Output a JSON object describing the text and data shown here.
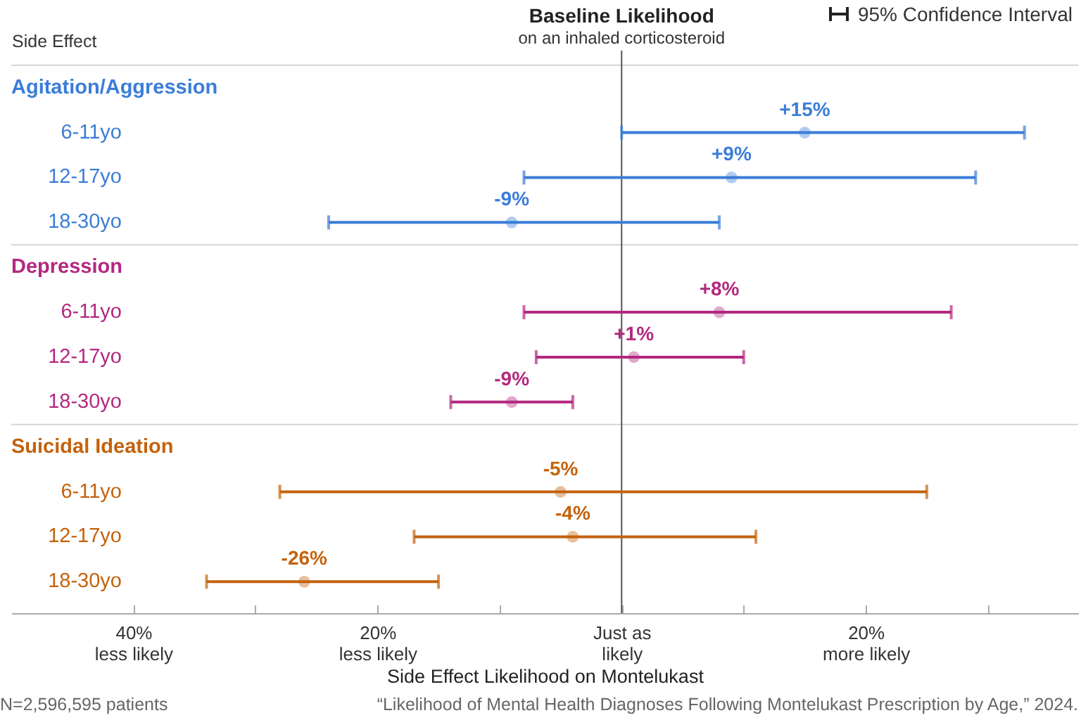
{
  "chart_data": {
    "type": "scatter",
    "orientation": "horizontal",
    "marker": "circle",
    "ylabel": "Side Effect",
    "xlabel": "Side Effect Likelihood on Montelukast",
    "categories": [
      null,
      "6-11yo",
      "12-17yo",
      "18-30yo",
      null,
      "6-11yo",
      "12-17yo",
      "18-30yo",
      null,
      "6-11yo",
      "12-17yo",
      "18-30yo"
    ],
    "xlim": [
      -50,
      37.4
    ],
    "xticks": [
      {
        "value": -40,
        "label": "40%\nless likely"
      },
      {
        "value": -30,
        "label": null
      },
      {
        "value": -20,
        "label": "20%\nless likely"
      },
      {
        "value": -10,
        "label": null
      },
      {
        "value": 0,
        "label": "Just as\nlikely"
      },
      {
        "value": 10,
        "label": null
      },
      {
        "value": 20,
        "label": "20%\nmore likely"
      },
      {
        "value": 30,
        "label": null
      }
    ],
    "series": [
      {
        "name": "Agitation/Aggression",
        "color": "#3b7dd8",
        "values": [
          null,
          15,
          9,
          -9,
          null,
          null,
          null,
          null,
          null,
          null,
          null,
          null
        ],
        "errors": [
          null,
          [
            0,
            33
          ],
          [
            -8,
            29
          ],
          [
            -24,
            8
          ],
          null,
          null,
          null,
          null,
          null,
          null,
          null,
          null
        ],
        "value_labels": [
          null,
          "+15%",
          "+9%",
          "-9%",
          null,
          null,
          null,
          null,
          null,
          null,
          null,
          null
        ]
      },
      {
        "name": "Depression",
        "color": "#b3287f",
        "values": [
          null,
          null,
          null,
          null,
          null,
          8,
          1,
          -9,
          null,
          null,
          null,
          null
        ],
        "errors": [
          null,
          null,
          null,
          null,
          null,
          [
            -8,
            27
          ],
          [
            -7,
            10
          ],
          [
            -14,
            -4
          ],
          null,
          null,
          null,
          null
        ],
        "value_labels": [
          null,
          null,
          null,
          null,
          null,
          "+8%",
          "+1%",
          "-9%",
          null,
          null,
          null,
          null
        ]
      },
      {
        "name": "Suicidal Ideation",
        "color": "#c4620c",
        "values": [
          null,
          null,
          null,
          null,
          null,
          null,
          null,
          null,
          null,
          -5,
          -4,
          -26
        ],
        "errors": [
          null,
          null,
          null,
          null,
          null,
          null,
          null,
          null,
          null,
          [
            -28,
            25
          ],
          [
            -17,
            11
          ],
          [
            -34,
            -15
          ]
        ],
        "value_labels": [
          null,
          null,
          null,
          null,
          null,
          null,
          null,
          null,
          null,
          "-5%",
          "-4%",
          "-26%"
        ]
      }
    ],
    "ref_lines": [
      {
        "axis": "x",
        "value": 0,
        "label": "Baseline Likelihood",
        "color": "#555555"
      }
    ],
    "annotations": [
      "on an inhaled corticosteroid",
      "95% Confidence Interval",
      "N=2,596,595 patients",
      "“Likelihood of Mental Health Diagnoses Following Montelukast Prescription by Age,” 2024."
    ]
  }
}
